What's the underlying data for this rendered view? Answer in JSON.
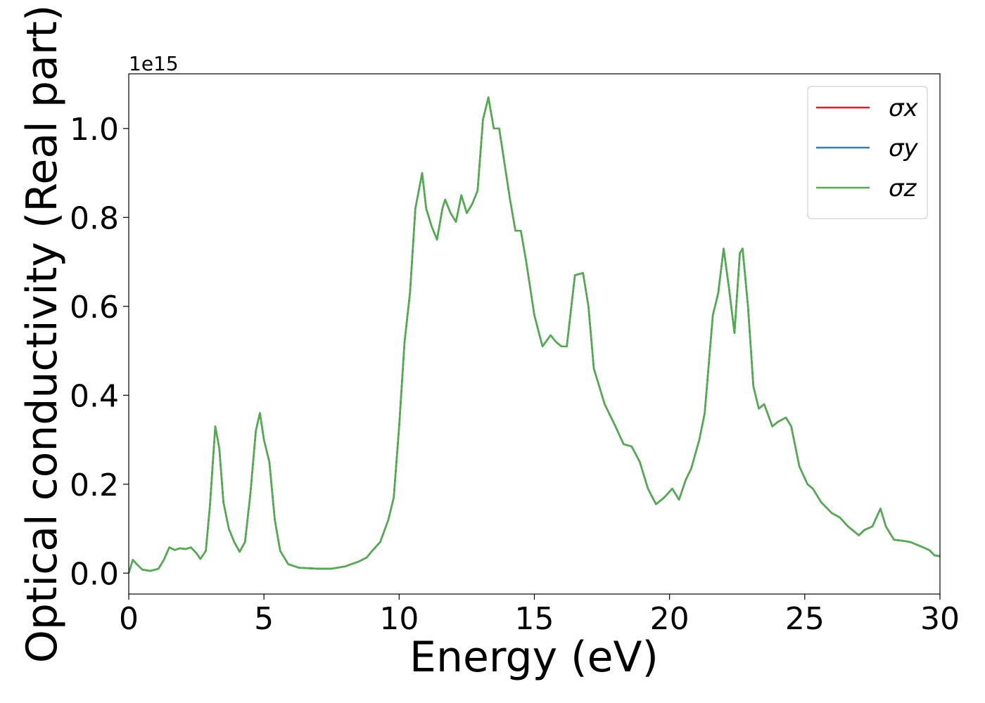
{
  "chart_data": {
    "type": "line",
    "xlabel": "Energy (eV)",
    "ylabel": "Optical conductivity (Real part)",
    "offset_text": "1e15",
    "xlim": [
      0,
      30
    ],
    "xticks": [
      0,
      5,
      10,
      15,
      20,
      25,
      30
    ],
    "ylim": [
      -0.047,
      1.123
    ],
    "yticks": [
      {
        "value": 0,
        "label": "0.0"
      },
      0.2,
      0.4,
      0.6,
      0.8,
      {
        "value": 1,
        "label": "1.0"
      }
    ],
    "legend": "upper right",
    "x": [
      0,
      0.15,
      0.3,
      0.5,
      0.8,
      1.1,
      1.3,
      1.5,
      1.7,
      1.9,
      2.1,
      2.3,
      2.5,
      2.65,
      2.85,
      3.0,
      3.2,
      3.35,
      3.5,
      3.7,
      3.9,
      4.1,
      4.3,
      4.5,
      4.7,
      4.85,
      5.0,
      5.2,
      5.4,
      5.6,
      5.9,
      6.3,
      7.0,
      7.5,
      8.0,
      8.5,
      8.8,
      9.0,
      9.3,
      9.6,
      9.8,
      10.0,
      10.2,
      10.4,
      10.6,
      10.85,
      11.0,
      11.2,
      11.4,
      11.6,
      11.7,
      11.9,
      12.1,
      12.3,
      12.5,
      12.7,
      12.9,
      13.1,
      13.3,
      13.5,
      13.7,
      13.9,
      14.1,
      14.3,
      14.5,
      14.7,
      15.0,
      15.3,
      15.6,
      15.8,
      16.0,
      16.2,
      16.5,
      16.8,
      17.0,
      17.2,
      17.6,
      18.0,
      18.3,
      18.6,
      18.9,
      19.2,
      19.5,
      19.8,
      20.1,
      20.35,
      20.6,
      20.8,
      21.1,
      21.3,
      21.6,
      21.8,
      22.0,
      22.2,
      22.4,
      22.6,
      22.7,
      22.9,
      23.1,
      23.3,
      23.5,
      23.8,
      24.0,
      24.3,
      24.5,
      24.8,
      25.1,
      25.3,
      25.6,
      26.0,
      26.3,
      26.6,
      27.0,
      27.2,
      27.5,
      27.8,
      28.0,
      28.3,
      28.6,
      28.9,
      29.3,
      29.6,
      29.8,
      30.0
    ],
    "series": [
      {
        "name": "σx",
        "color": "#e41a1c",
        "values": [
          0,
          0.03,
          0.02,
          0.008,
          0.005,
          0.01,
          0.03,
          0.058,
          0.052,
          0.056,
          0.054,
          0.058,
          0.045,
          0.032,
          0.05,
          0.15,
          0.33,
          0.28,
          0.16,
          0.1,
          0.07,
          0.048,
          0.07,
          0.18,
          0.32,
          0.36,
          0.3,
          0.25,
          0.12,
          0.05,
          0.02,
          0.012,
          0.01,
          0.01,
          0.015,
          0.026,
          0.035,
          0.05,
          0.07,
          0.12,
          0.17,
          0.33,
          0.52,
          0.63,
          0.82,
          0.9,
          0.82,
          0.78,
          0.75,
          0.82,
          0.84,
          0.81,
          0.79,
          0.85,
          0.81,
          0.83,
          0.86,
          1.02,
          1.07,
          1.0,
          1.0,
          0.92,
          0.84,
          0.77,
          0.77,
          0.7,
          0.58,
          0.51,
          0.535,
          0.52,
          0.51,
          0.51,
          0.67,
          0.675,
          0.6,
          0.46,
          0.38,
          0.33,
          0.29,
          0.285,
          0.25,
          0.19,
          0.155,
          0.17,
          0.19,
          0.165,
          0.21,
          0.235,
          0.3,
          0.36,
          0.58,
          0.63,
          0.73,
          0.64,
          0.54,
          0.72,
          0.73,
          0.6,
          0.42,
          0.37,
          0.38,
          0.33,
          0.34,
          0.35,
          0.33,
          0.24,
          0.2,
          0.19,
          0.16,
          0.135,
          0.125,
          0.105,
          0.085,
          0.097,
          0.105,
          0.145,
          0.105,
          0.075,
          0.073,
          0.07,
          0.06,
          0.052,
          0.04,
          0.038
        ]
      },
      {
        "name": "σy",
        "color": "#377eb8",
        "values": [
          0,
          0.03,
          0.02,
          0.008,
          0.005,
          0.01,
          0.03,
          0.058,
          0.052,
          0.056,
          0.054,
          0.058,
          0.045,
          0.032,
          0.05,
          0.15,
          0.33,
          0.28,
          0.16,
          0.1,
          0.07,
          0.048,
          0.07,
          0.18,
          0.32,
          0.36,
          0.3,
          0.25,
          0.12,
          0.05,
          0.02,
          0.012,
          0.01,
          0.01,
          0.015,
          0.026,
          0.035,
          0.05,
          0.07,
          0.12,
          0.17,
          0.33,
          0.52,
          0.63,
          0.82,
          0.9,
          0.82,
          0.78,
          0.75,
          0.82,
          0.84,
          0.81,
          0.79,
          0.85,
          0.81,
          0.83,
          0.86,
          1.02,
          1.07,
          1.0,
          1.0,
          0.92,
          0.84,
          0.77,
          0.77,
          0.7,
          0.58,
          0.51,
          0.535,
          0.52,
          0.51,
          0.51,
          0.67,
          0.675,
          0.6,
          0.46,
          0.38,
          0.33,
          0.29,
          0.285,
          0.25,
          0.19,
          0.155,
          0.17,
          0.19,
          0.165,
          0.21,
          0.235,
          0.3,
          0.36,
          0.58,
          0.63,
          0.73,
          0.64,
          0.54,
          0.72,
          0.73,
          0.6,
          0.42,
          0.37,
          0.38,
          0.33,
          0.34,
          0.35,
          0.33,
          0.24,
          0.2,
          0.19,
          0.16,
          0.135,
          0.125,
          0.105,
          0.085,
          0.097,
          0.105,
          0.145,
          0.105,
          0.075,
          0.073,
          0.07,
          0.06,
          0.052,
          0.04,
          0.038
        ]
      },
      {
        "name": "σz",
        "color": "#4daf4a",
        "values": [
          0,
          0.03,
          0.02,
          0.008,
          0.005,
          0.01,
          0.03,
          0.058,
          0.052,
          0.056,
          0.054,
          0.058,
          0.045,
          0.032,
          0.05,
          0.15,
          0.33,
          0.28,
          0.16,
          0.1,
          0.07,
          0.048,
          0.07,
          0.18,
          0.32,
          0.36,
          0.3,
          0.25,
          0.12,
          0.05,
          0.02,
          0.012,
          0.01,
          0.01,
          0.015,
          0.026,
          0.035,
          0.05,
          0.07,
          0.12,
          0.17,
          0.33,
          0.52,
          0.63,
          0.82,
          0.9,
          0.82,
          0.78,
          0.75,
          0.82,
          0.84,
          0.81,
          0.79,
          0.85,
          0.81,
          0.83,
          0.86,
          1.02,
          1.07,
          1.0,
          1.0,
          0.92,
          0.84,
          0.77,
          0.77,
          0.7,
          0.58,
          0.51,
          0.535,
          0.52,
          0.51,
          0.51,
          0.67,
          0.675,
          0.6,
          0.46,
          0.38,
          0.33,
          0.29,
          0.285,
          0.25,
          0.19,
          0.155,
          0.17,
          0.19,
          0.165,
          0.21,
          0.235,
          0.3,
          0.36,
          0.58,
          0.63,
          0.73,
          0.64,
          0.54,
          0.72,
          0.73,
          0.6,
          0.42,
          0.37,
          0.38,
          0.33,
          0.34,
          0.35,
          0.33,
          0.24,
          0.2,
          0.19,
          0.16,
          0.135,
          0.125,
          0.105,
          0.085,
          0.097,
          0.105,
          0.145,
          0.105,
          0.075,
          0.073,
          0.07,
          0.06,
          0.052,
          0.04,
          0.038
        ]
      }
    ]
  }
}
